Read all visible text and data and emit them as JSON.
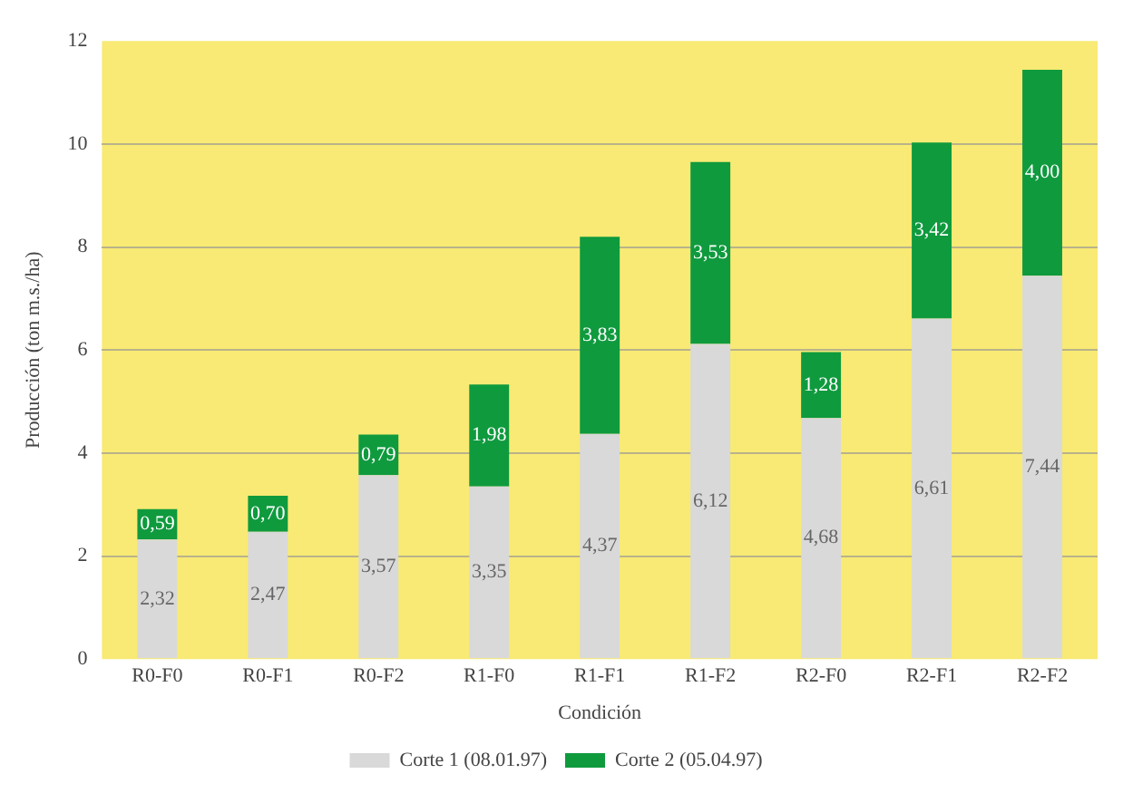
{
  "chart_data": {
    "type": "bar",
    "stacked": true,
    "xlabel": "Condición",
    "ylabel": "Producción (ton m.s./ha)",
    "categories": [
      "R0-F0",
      "R0-F1",
      "R0-F2",
      "R1-F0",
      "R1-F1",
      "R1-F2",
      "R2-F0",
      "R2-F1",
      "R2-F2"
    ],
    "series": [
      {
        "name": "Corte 1 (08.01.97)",
        "color": "#d9d9d9",
        "values": [
          2.32,
          2.47,
          3.57,
          3.35,
          4.37,
          6.12,
          4.68,
          6.61,
          7.44
        ],
        "value_labels": [
          "2,32",
          "2,47",
          "3,57",
          "3,35",
          "4,37",
          "6,12",
          "4,68",
          "6,61",
          "7,44"
        ]
      },
      {
        "name": "Corte 2 (05.04.97)",
        "color": "#0f9a3e",
        "values": [
          0.59,
          0.7,
          0.79,
          1.98,
          3.83,
          3.53,
          1.28,
          3.42,
          4.0
        ],
        "value_labels": [
          "0,59",
          "0,70",
          "0,79",
          "1,98",
          "3,83",
          "3,53",
          "1,28",
          "3,42",
          "4,00"
        ]
      }
    ],
    "ylim": [
      0,
      12
    ],
    "yticks": [
      0,
      2,
      4,
      6,
      8,
      10,
      12
    ],
    "grid": "y",
    "legend": "bottom"
  }
}
